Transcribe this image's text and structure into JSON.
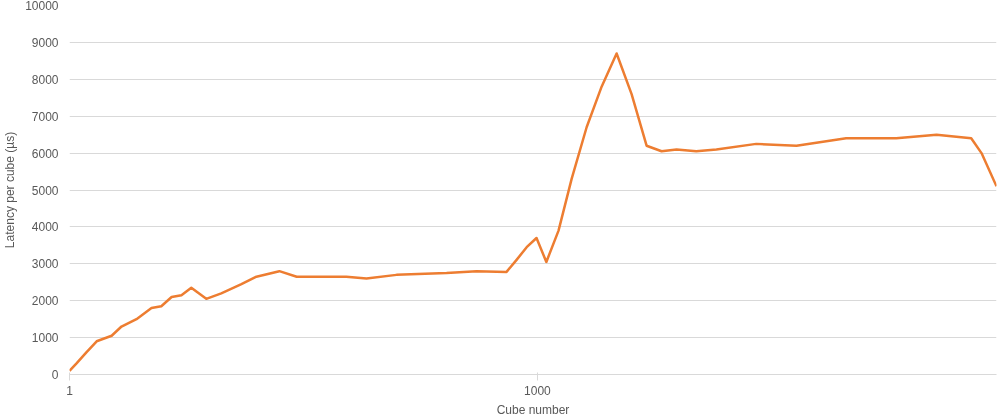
{
  "chart_data": {
    "type": "line",
    "xlabel": "Cube number",
    "ylabel": "Latency per cube (µs)",
    "xlim": [
      1,
      1980
    ],
    "xticks": [
      1,
      1000
    ],
    "ylim": [
      0,
      10000
    ],
    "yticks": [
      0,
      1000,
      2000,
      3000,
      4000,
      5000,
      6000,
      7000,
      8000,
      9000,
      10000
    ],
    "grid": "y",
    "series": [
      {
        "color": "#ed7d31",
        "x": [
          1,
          16,
          37,
          59,
          91,
          112,
          144,
          176,
          197,
          219,
          240,
          261,
          293,
          325,
          368,
          400,
          449,
          486,
          592,
          635,
          699,
          806,
          870,
          934,
          955,
          977,
          998,
          1019,
          1045,
          1073,
          1105,
          1137,
          1169,
          1201,
          1233,
          1265,
          1297,
          1339,
          1382,
          1467,
          1553,
          1659,
          1766,
          1852,
          1926,
          1948,
          1980
        ],
        "values": [
          100,
          300,
          600,
          900,
          1050,
          1300,
          1500,
          1800,
          1850,
          2100,
          2150,
          2350,
          2050,
          2200,
          2450,
          2650,
          2800,
          2650,
          2650,
          2600,
          2700,
          2750,
          2800,
          2780,
          3100,
          3450,
          3700,
          3050,
          3900,
          5300,
          6700,
          7800,
          8700,
          7600,
          6200,
          6050,
          6100,
          6050,
          6100,
          6250,
          6200,
          6400,
          6400,
          6500,
          6400,
          6000,
          5100
        ]
      }
    ]
  }
}
